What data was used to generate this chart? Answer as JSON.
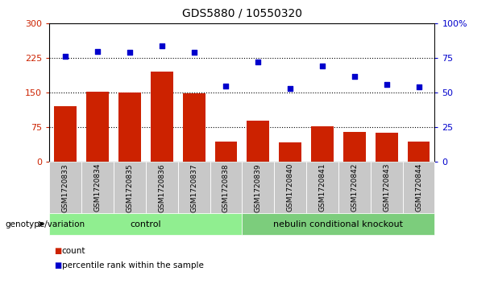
{
  "title": "GDS5880 / 10550320",
  "samples": [
    "GSM1720833",
    "GSM1720834",
    "GSM1720835",
    "GSM1720836",
    "GSM1720837",
    "GSM1720838",
    "GSM1720839",
    "GSM1720840",
    "GSM1720841",
    "GSM1720842",
    "GSM1720843",
    "GSM1720844"
  ],
  "counts": [
    120,
    152,
    150,
    195,
    148,
    45,
    90,
    42,
    78,
    65,
    63,
    45
  ],
  "percentiles": [
    76,
    80,
    79,
    84,
    79,
    55,
    72,
    53,
    69,
    62,
    56,
    54
  ],
  "groups": [
    {
      "label": "control",
      "start": 0,
      "end": 5,
      "color": "#90EE90"
    },
    {
      "label": "nebulin conditional knockout",
      "start": 6,
      "end": 11,
      "color": "#7CCD7C"
    }
  ],
  "bar_color": "#CC2200",
  "dot_color": "#0000CC",
  "left_yticks": [
    0,
    75,
    150,
    225,
    300
  ],
  "right_yticks": [
    0,
    25,
    50,
    75,
    100
  ],
  "right_yticklabels": [
    "0",
    "25",
    "50",
    "75",
    "100%"
  ],
  "grid_lines": [
    75,
    150,
    225
  ],
  "ylim_left": [
    0,
    300
  ],
  "ylim_right": [
    0,
    100
  ],
  "group_label_prefix": "genotype/variation",
  "legend_count_label": "count",
  "legend_percentile_label": "percentile rank within the sample",
  "bg_color_tick": "#C8C8C8"
}
